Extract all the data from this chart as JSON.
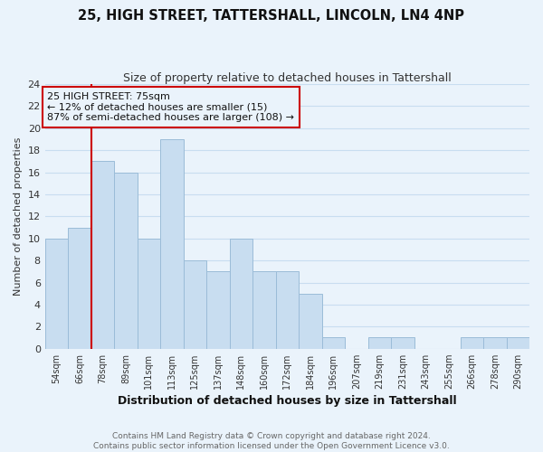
{
  "title": "25, HIGH STREET, TATTERSHALL, LINCOLN, LN4 4NP",
  "subtitle": "Size of property relative to detached houses in Tattershall",
  "xlabel": "Distribution of detached houses by size in Tattershall",
  "ylabel": "Number of detached properties",
  "bar_labels": [
    "54sqm",
    "66sqm",
    "78sqm",
    "89sqm",
    "101sqm",
    "113sqm",
    "125sqm",
    "137sqm",
    "148sqm",
    "160sqm",
    "172sqm",
    "184sqm",
    "196sqm",
    "207sqm",
    "219sqm",
    "231sqm",
    "243sqm",
    "255sqm",
    "266sqm",
    "278sqm",
    "290sqm"
  ],
  "bar_values": [
    10,
    11,
    17,
    16,
    10,
    19,
    8,
    7,
    10,
    7,
    7,
    5,
    1,
    0,
    1,
    1,
    0,
    0,
    1,
    1,
    1
  ],
  "bar_color": "#c8ddf0",
  "bar_edge_color": "#9bbcd8",
  "grid_color": "#c8ddf0",
  "background_color": "#eaf3fb",
  "vline_color": "#cc0000",
  "annotation_text": "25 HIGH STREET: 75sqm\n← 12% of detached houses are smaller (15)\n87% of semi-detached houses are larger (108) →",
  "annotation_box_edge": "#cc0000",
  "ylim": [
    0,
    24
  ],
  "yticks": [
    0,
    2,
    4,
    6,
    8,
    10,
    12,
    14,
    16,
    18,
    20,
    22,
    24
  ],
  "footer_line1": "Contains HM Land Registry data © Crown copyright and database right 2024.",
  "footer_line2": "Contains public sector information licensed under the Open Government Licence v3.0."
}
